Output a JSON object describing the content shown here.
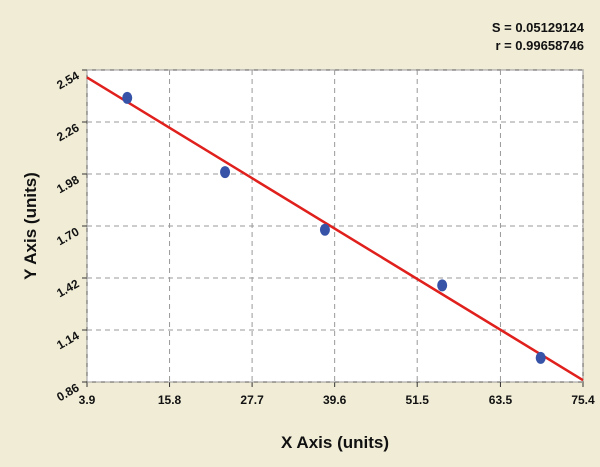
{
  "chart_data": {
    "type": "scatter",
    "annotations": [
      "S = 0.05129124",
      "r = 0.99658746"
    ],
    "x_label": "X Axis (units)",
    "y_label": "Y Axis (units)",
    "xlim": [
      3.9,
      75.4
    ],
    "ylim": [
      0.86,
      2.54
    ],
    "xticks": [
      3.9,
      15.8,
      27.7,
      39.6,
      51.5,
      63.5,
      75.4
    ],
    "yticks": [
      0.86,
      1.14,
      1.42,
      {
        "value": 1.7,
        "label": "1.70"
      },
      1.98,
      2.26,
      2.54
    ],
    "grid": true,
    "series": [
      {
        "color": "#3653a8",
        "x": [
          9.7,
          23.8,
          38.2,
          55.1,
          69.3
        ],
        "values": [
          2.39,
          1.99,
          1.68,
          1.38,
          0.99
        ]
      }
    ],
    "fit": {
      "color": "#e0201c",
      "x": [
        3.9,
        75.4
      ],
      "values": [
        2.5,
        0.87
      ]
    }
  }
}
